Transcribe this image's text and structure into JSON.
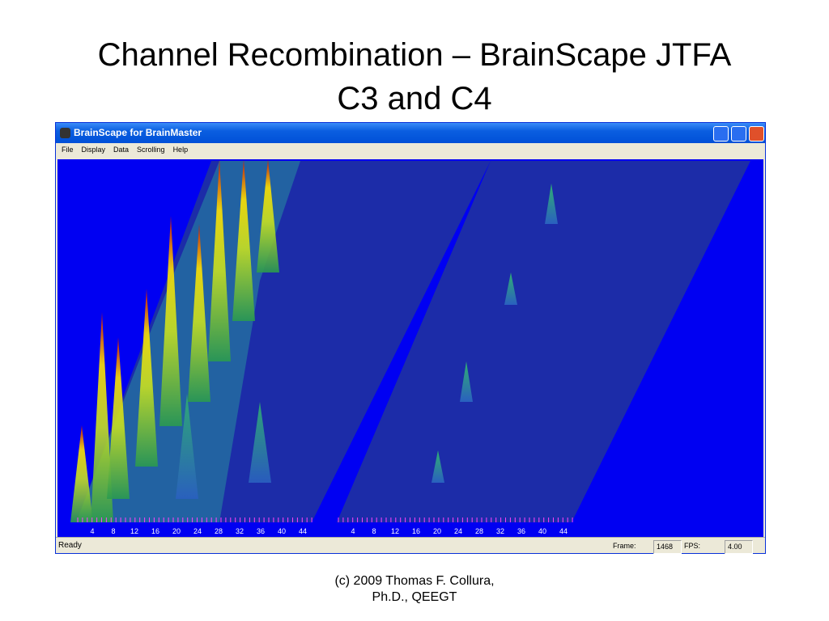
{
  "slide": {
    "title_lines": [
      "Channel Recombination – BrainScape JTFA",
      "C3 and C4"
    ],
    "footer_lines": [
      "(c) 2009 Thomas F. Collura,",
      "Ph.D., QEEGT"
    ]
  },
  "window": {
    "title": "BrainScape for BrainMaster",
    "menu": [
      "File",
      "Display",
      "Data",
      "Scrolling",
      "Help"
    ],
    "panels": [
      {
        "freq_labels": [
          "4",
          "8",
          "12",
          "16",
          "20",
          "24",
          "28",
          "32",
          "36",
          "40",
          "44"
        ]
      },
      {
        "freq_labels": [
          "4",
          "8",
          "12",
          "16",
          "20",
          "24",
          "28",
          "32",
          "36",
          "40",
          "44"
        ]
      }
    ],
    "status": {
      "text": "Ready",
      "frame_label": "Frame:",
      "frame_value": "1468",
      "fps_label": "FPS:",
      "fps_value": "4.00"
    }
  }
}
